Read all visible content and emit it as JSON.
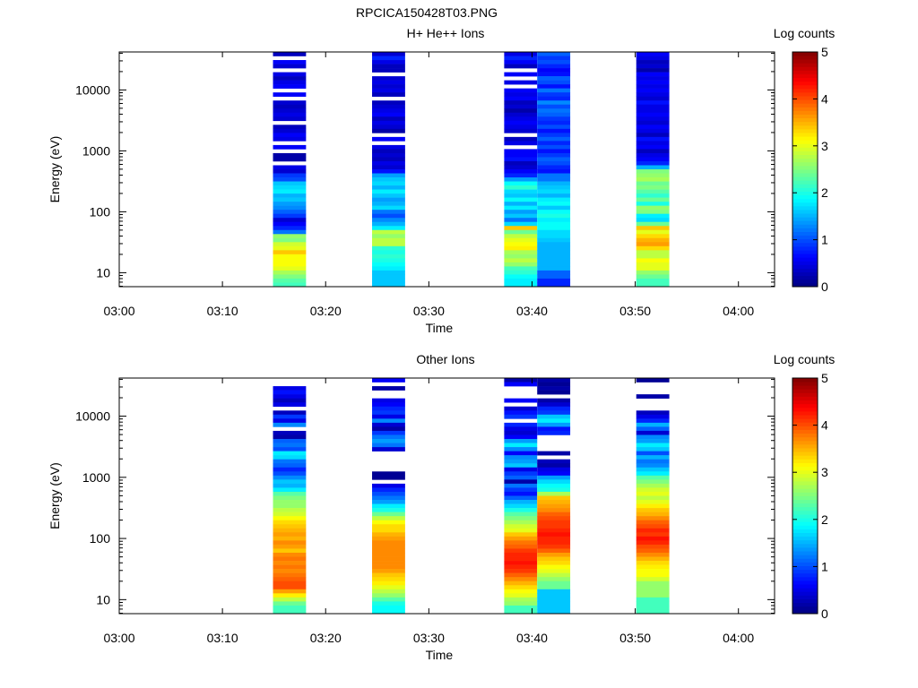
{
  "page_title": "RPCICA150428T03.PNG",
  "chart_data": [
    {
      "type": "heatmap",
      "title": "H+ He++ Ions",
      "xlabel": "Time",
      "ylabel": "Energy (eV)",
      "xlim_minutes": [
        0,
        63.5
      ],
      "x_tick_labels": [
        "03:00",
        "03:10",
        "03:20",
        "03:30",
        "03:40",
        "03:50",
        "04:00"
      ],
      "x_tick_minutes": [
        0,
        10,
        20,
        30,
        40,
        50,
        60
      ],
      "yscale": "log",
      "ylim": [
        5.9,
        42000
      ],
      "y_tick_labels": [
        "10",
        "100",
        "1000",
        "10000"
      ],
      "y_tick_values": [
        10,
        100,
        1000,
        10000
      ],
      "colorbar": {
        "label": "Log counts",
        "range": [
          0,
          5
        ],
        "tick_labels": [
          "0",
          "1",
          "2",
          "3",
          "4",
          "5"
        ]
      },
      "columns": [
        {
          "start_min": 14.9,
          "end_min": 18.1,
          "values": [
            0.3,
            null,
            0.6,
            0.4,
            null,
            0.5,
            0.3,
            0.5,
            0.6,
            null,
            0.6,
            null,
            0.4,
            0.3,
            0.4,
            0.5,
            0.4,
            null,
            0.3,
            0.4,
            0.6,
            0.5,
            null,
            0.6,
            null,
            0.2,
            0.2,
            null,
            0.5,
            0.4,
            0.9,
            1.0,
            1.6,
            1.7,
            1.8,
            1.5,
            1.6,
            1.4,
            1.3,
            1.1,
            0.9,
            0.4,
            0.6,
            0.8,
            1.2,
            2.6,
            2.5,
            2.9,
            3.0,
            3.4,
            3.1,
            3.1,
            3.1,
            3.0,
            2.7,
            2.5,
            2.3,
            2.2
          ]
        },
        {
          "start_min": 24.5,
          "end_min": 27.7,
          "values": [
            0.4,
            0.8,
            0.5,
            0.3,
            0.3,
            null,
            0.4,
            0.5,
            0.4,
            0.5,
            0.3,
            null,
            0.3,
            0.4,
            0.5,
            0.6,
            0.3,
            0.5,
            0.4,
            0.2,
            null,
            0.6,
            null,
            0.5,
            0.3,
            0.4,
            0.3,
            0.5,
            0.4,
            0.7,
            1.4,
            1.6,
            1.7,
            1.5,
            1.8,
            1.6,
            1.4,
            1.5,
            1.7,
            1.2,
            1.0,
            1.3,
            1.5,
            1.8,
            2.8,
            2.6,
            2.8,
            2.8,
            2.1,
            2.0,
            2.1,
            2.0,
            1.9,
            1.8,
            1.6,
            1.6,
            1.6,
            1.6
          ]
        },
        {
          "start_min": 37.3,
          "end_min": 40.5,
          "values": [
            0.5,
            0.8,
            0.6,
            0.3,
            null,
            0.6,
            null,
            0.5,
            null,
            0.6,
            0.5,
            0.6,
            0.3,
            0.4,
            0.2,
            0.4,
            0.5,
            0.6,
            0.5,
            0.4,
            null,
            0.3,
            0.5,
            null,
            0.6,
            0.6,
            0.7,
            0.3,
            0.4,
            0.6,
            0.8,
            1.4,
            1.9,
            2.1,
            1.7,
            1.6,
            1.9,
            1.5,
            1.8,
            1.4,
            1.6,
            1.2,
            1.7,
            3.4,
            2.4,
            2.8,
            3.0,
            3.1,
            3.2,
            2.7,
            2.6,
            2.8,
            2.6,
            2.2,
            2.1,
            1.9,
            1.8,
            1.8
          ]
        },
        {
          "start_min": 40.5,
          "end_min": 43.7,
          "values": [
            1.1,
            0.9,
            1.0,
            0.8,
            0.6,
            0.7,
            1.1,
            1.0,
            0.7,
            1.2,
            0.9,
            0.8,
            1.3,
            1.0,
            1.2,
            1.1,
            0.9,
            0.8,
            1.0,
            0.7,
            0.9,
            1.1,
            0.8,
            1.0,
            0.7,
            0.9,
            1.1,
            1.0,
            0.8,
            0.7,
            1.2,
            1.2,
            1.5,
            1.6,
            1.7,
            1.5,
            1.8,
            1.9,
            1.6,
            1.9,
            2.0,
            1.8,
            1.9,
            1.9,
            1.7,
            1.7,
            1.6,
            1.5,
            1.5,
            1.5,
            1.5,
            1.5,
            1.5,
            1.5,
            1.1,
            1.1,
            0.8,
            0.8
          ]
        },
        {
          "start_min": 50.1,
          "end_min": 53.3,
          "values": [
            0.6,
            0.5,
            0.3,
            0.4,
            0.2,
            0.6,
            0.5,
            0.6,
            0.5,
            0.6,
            0.5,
            0.4,
            0.7,
            0.5,
            0.5,
            0.6,
            0.5,
            0.4,
            0.6,
            0.5,
            0.3,
            0.7,
            0.5,
            0.6,
            0.3,
            0.5,
            0.6,
            0.8,
            1.5,
            2.5,
            2.6,
            2.7,
            2.4,
            2.5,
            2.3,
            2.1,
            2.4,
            2.0,
            2.6,
            2.5,
            1.8,
            1.7,
            2.4,
            3.4,
            3.0,
            3.3,
            3.5,
            3.6,
            3.3,
            2.8,
            2.8,
            3.1,
            3.0,
            3.0,
            2.6,
            2.4,
            2.2,
            2.2
          ]
        }
      ]
    },
    {
      "type": "heatmap",
      "title": "Other Ions",
      "xlabel": "Time",
      "ylabel": "Energy (eV)",
      "xlim_minutes": [
        0,
        63.5
      ],
      "x_tick_labels": [
        "03:00",
        "03:10",
        "03:20",
        "03:30",
        "03:40",
        "03:50",
        "04:00"
      ],
      "x_tick_minutes": [
        0,
        10,
        20,
        30,
        40,
        50,
        60
      ],
      "yscale": "log",
      "ylim": [
        5.9,
        42000
      ],
      "y_tick_labels": [
        "10",
        "100",
        "1000",
        "10000"
      ],
      "y_tick_values": [
        10,
        100,
        1000,
        10000
      ],
      "colorbar": {
        "label": "Log counts",
        "range": [
          0,
          5
        ],
        "tick_labels": [
          "0",
          "1",
          "2",
          "3",
          "4",
          "5"
        ]
      },
      "columns": [
        {
          "start_min": 14.9,
          "end_min": 18.1,
          "values": [
            null,
            null,
            0.5,
            0.7,
            0.5,
            0.3,
            0.5,
            null,
            0.3,
            0.9,
            0.5,
            1.3,
            null,
            0.3,
            0.2,
            1.1,
            1.2,
            1.0,
            1.8,
            1.7,
            1.2,
            1.1,
            0.8,
            1.0,
            1.3,
            1.6,
            1.5,
            1.8,
            2.3,
            2.5,
            2.6,
            2.6,
            2.8,
            2.9,
            3.1,
            3.3,
            3.4,
            3.5,
            3.6,
            3.5,
            3.7,
            3.6,
            3.4,
            3.7,
            3.8,
            3.7,
            3.8,
            3.7,
            3.8,
            3.9,
            4.0,
            4.0,
            3.6,
            3.2,
            2.8,
            2.4,
            2.2,
            2.2
          ]
        },
        {
          "start_min": 24.5,
          "end_min": 27.7,
          "values": [
            0.6,
            null,
            0.2,
            null,
            null,
            0.5,
            0.6,
            0.8,
            0.9,
            0.5,
            1.3,
            0.4,
            0.2,
            0.9,
            1.2,
            1.4,
            1.2,
            0.4,
            null,
            null,
            null,
            null,
            null,
            0.1,
            0.1,
            null,
            0.5,
            0.8,
            1.0,
            1.2,
            1.4,
            1.8,
            2.0,
            2.4,
            2.8,
            3.1,
            3.3,
            3.3,
            3.5,
            3.6,
            3.7,
            3.7,
            3.7,
            3.7,
            3.7,
            3.7,
            3.7,
            3.6,
            3.4,
            3.3,
            3.2,
            3.0,
            2.8,
            2.6,
            2.3,
            2.0,
            1.9,
            1.9
          ]
        },
        {
          "start_min": 37.3,
          "end_min": 40.5,
          "values": [
            0.2,
            0.6,
            null,
            null,
            null,
            0.6,
            null,
            0.4,
            0.7,
            0.9,
            null,
            0.8,
            0.5,
            0.4,
            0.6,
            1.4,
            1.8,
            1.3,
            0.6,
            1.3,
            1.4,
            1.6,
            0.5,
            0.9,
            1.1,
            0.2,
            1.2,
            0.9,
            0.7,
            1.1,
            1.5,
            1.7,
            2.0,
            2.3,
            2.5,
            2.7,
            2.9,
            3.0,
            3.4,
            3.6,
            3.8,
            3.9,
            4.1,
            4.2,
            4.2,
            4.3,
            4.2,
            4.1,
            3.9,
            3.7,
            3.5,
            3.3,
            3.1,
            3.0,
            2.7,
            2.6,
            2.2,
            2.2
          ]
        },
        {
          "start_min": 40.5,
          "end_min": 43.7,
          "values": [
            0.2,
            0.1,
            0.2,
            0.1,
            null,
            0.2,
            0.4,
            0.8,
            0.9,
            1.6,
            1.8,
            1.4,
            0.7,
            0.8,
            null,
            null,
            null,
            null,
            0.2,
            null,
            0.3,
            0.2,
            0.5,
            0.6,
            1.4,
            1.7,
            1.9,
            2.0,
            2.7,
            3.4,
            3.5,
            3.6,
            3.7,
            3.9,
            4.0,
            4.1,
            4.1,
            4.2,
            4.3,
            4.2,
            4.2,
            4.1,
            3.9,
            3.6,
            3.4,
            3.3,
            3.1,
            3.0,
            2.8,
            2.6,
            2.4,
            2.4,
            1.6,
            1.6,
            1.6,
            1.6,
            1.6,
            1.6
          ]
        },
        {
          "start_min": 50.1,
          "end_min": 53.3,
          "values": [
            0.1,
            null,
            null,
            null,
            0.2,
            null,
            null,
            null,
            0.3,
            0.5,
            0.8,
            1.5,
            1.1,
            0.4,
            1.3,
            1.4,
            1.8,
            1.6,
            1.0,
            1.5,
            1.2,
            1.3,
            1.6,
            1.8,
            2.3,
            2.5,
            2.7,
            2.9,
            3.0,
            2.8,
            3.0,
            3.2,
            3.4,
            3.5,
            3.7,
            3.9,
            4.0,
            4.2,
            4.1,
            4.3,
            4.2,
            4.0,
            3.9,
            3.7,
            3.5,
            3.3,
            3.2,
            3.1,
            3.1,
            2.9,
            2.6,
            2.6,
            2.6,
            2.6,
            2.2,
            2.2,
            2.2,
            2.2
          ]
        }
      ]
    }
  ]
}
